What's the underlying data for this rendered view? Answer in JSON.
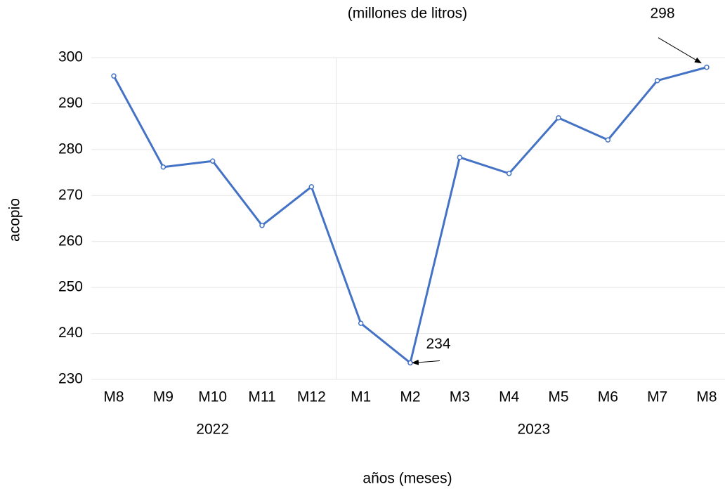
{
  "chart_data": {
    "type": "line",
    "title": "(millones de litros)",
    "y_label": "acopio",
    "x_label": "años (meses)",
    "categories": [
      "M8",
      "M9",
      "M10",
      "M11",
      "M12",
      "M1",
      "M2",
      "M3",
      "M4",
      "M5",
      "M6",
      "M7",
      "M8"
    ],
    "groups": [
      {
        "label": "2022",
        "span": [
          0,
          4
        ]
      },
      {
        "label": "2023",
        "span": [
          5,
          12
        ]
      }
    ],
    "series": [
      {
        "name": "acopio",
        "color": "#4472c4",
        "values": [
          296,
          276.2,
          277.5,
          263.5,
          271.9,
          242.2,
          233.6,
          278.3,
          274.8,
          286.9,
          282.1,
          295,
          297.9
        ],
        "value_labels": [
          null,
          null,
          null,
          null,
          null,
          null,
          "234",
          null,
          null,
          null,
          null,
          null,
          "298"
        ]
      }
    ],
    "ylim": [
      230,
      300
    ],
    "yticks": [
      230,
      240,
      250,
      260,
      270,
      280,
      290,
      300
    ],
    "grid": true
  }
}
